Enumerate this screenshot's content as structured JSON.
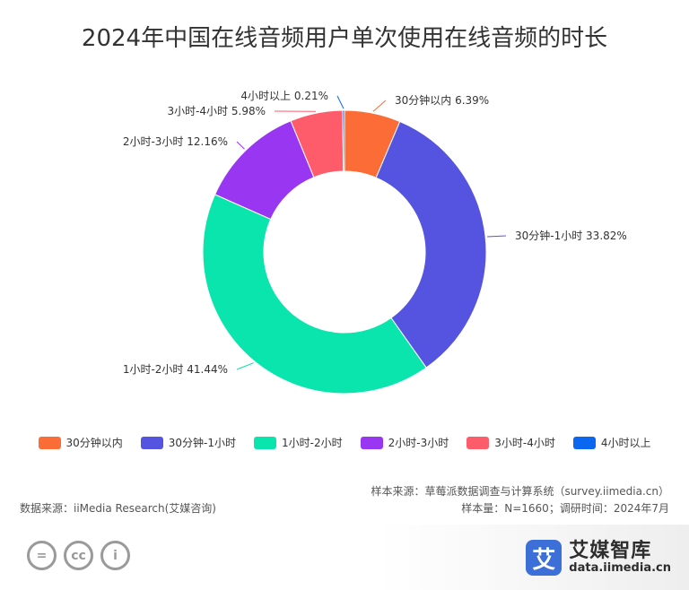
{
  "title": "2024年中国在线音频用户单次使用在线音频的时长",
  "chart_data": {
    "type": "pie",
    "subtype": "donut",
    "title": "2024年中国在线音频用户单次使用在线音频的时长",
    "unit": "%",
    "slices": [
      {
        "label": "30分钟以内",
        "value": 6.39,
        "display": "30分钟以内 6.39%",
        "color": "#fb6c36"
      },
      {
        "label": "30分钟-1小时",
        "value": 33.82,
        "display": "30分钟-1小时 33.82%",
        "color": "#5454e0"
      },
      {
        "label": "1小时-2小时",
        "value": 41.44,
        "display": "1小时-2小时 41.44%",
        "color": "#0ae5ad"
      },
      {
        "label": "2小时-3小时",
        "value": 12.16,
        "display": "2小时-3小时 12.16%",
        "color": "#9836f2"
      },
      {
        "label": "3小时-4小时",
        "value": 5.98,
        "display": "3小时-4小时 5.98%",
        "color": "#fe5c6a"
      },
      {
        "label": "4小时以上",
        "value": 0.21,
        "display": "4小时以上 0.21%",
        "color": "#0b66f0"
      }
    ],
    "legend_position": "bottom"
  },
  "footer": {
    "source": "数据来源：iiMedia Research(艾媒咨询)",
    "sample_source": "样本来源：草莓派数据调查与计算系统（survey.iimedia.cn）",
    "sample_info": "样本量：N=1660；调研时间：2024年7月"
  },
  "license_icons": [
    "equals-icon",
    "cc-icon",
    "person-icon"
  ],
  "license_glyphs": [
    "=",
    "cc",
    "i"
  ],
  "brand": {
    "mark": "艾",
    "name": "艾媒智库",
    "url": "data.iimedia.cn"
  }
}
